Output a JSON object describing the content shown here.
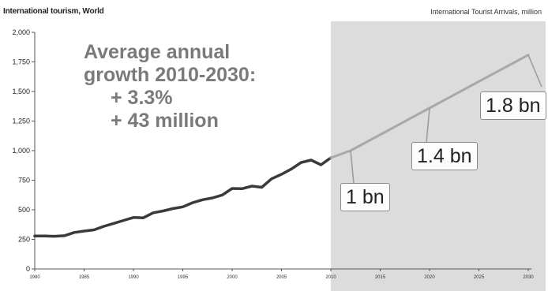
{
  "header": {
    "left_title": "International tourism, World",
    "right_title": "International Tourist Arrivals, million"
  },
  "annotation": {
    "lines": [
      "Average annual",
      "growth 2010-2030:",
      "+ 3.3%",
      "+ 43 million"
    ]
  },
  "callouts": [
    {
      "label": "1 bn",
      "x": 2012,
      "y": 1000
    },
    {
      "label": "1.4 bn",
      "x": 2020,
      "y": 1360
    },
    {
      "label": "1.8 bn",
      "x": 2030,
      "y": 1809
    }
  ],
  "colors": {
    "actual_line": "#3a3a3a",
    "forecast_line": "#a8a8a8",
    "forecast_shade": "#dcdcdc",
    "annotation_text": "#7a7a7a"
  },
  "chart_data": {
    "type": "line",
    "xlim": [
      1980,
      2030
    ],
    "ylim": [
      0,
      2000
    ],
    "x_ticks": [
      1980,
      1985,
      1990,
      1995,
      2000,
      2005,
      2010,
      2015,
      2020,
      2025,
      2030
    ],
    "x_tick_labels": [
      "1980",
      "1985",
      "1990",
      "1995",
      "2000",
      "2005",
      "2010",
      "2015",
      "2020",
      "2025",
      "2030"
    ],
    "y_ticks": [
      0,
      250,
      500,
      750,
      1000,
      1250,
      1500,
      1750,
      2000
    ],
    "y_tick_labels": [
      "0",
      "250",
      "500",
      "750",
      "1,000",
      "1,250",
      "1,500",
      "1,750",
      "2,000"
    ],
    "forecast_region": [
      2010,
      2030
    ],
    "series": [
      {
        "x": [
          1980,
          1981,
          1982,
          1983,
          1984,
          1985,
          1986,
          1987,
          1988,
          1989,
          1990,
          1991,
          1992,
          1993,
          1994,
          1995,
          1996,
          1997,
          1998,
          1999,
          2000,
          2001,
          2002,
          2003,
          2004,
          2005,
          2006,
          2007,
          2008,
          2009,
          2010
        ],
        "values": [
          278,
          278,
          276,
          281,
          308,
          320,
          330,
          360,
          385,
          410,
          435,
          432,
          475,
          490,
          510,
          525,
          560,
          585,
          600,
          625,
          680,
          678,
          700,
          690,
          762,
          800,
          845,
          900,
          920,
          880,
          940
        ]
      },
      {
        "x": [
          2010,
          2012,
          2020,
          2030
        ],
        "values": [
          940,
          1000,
          1360,
          1809
        ]
      }
    ]
  }
}
